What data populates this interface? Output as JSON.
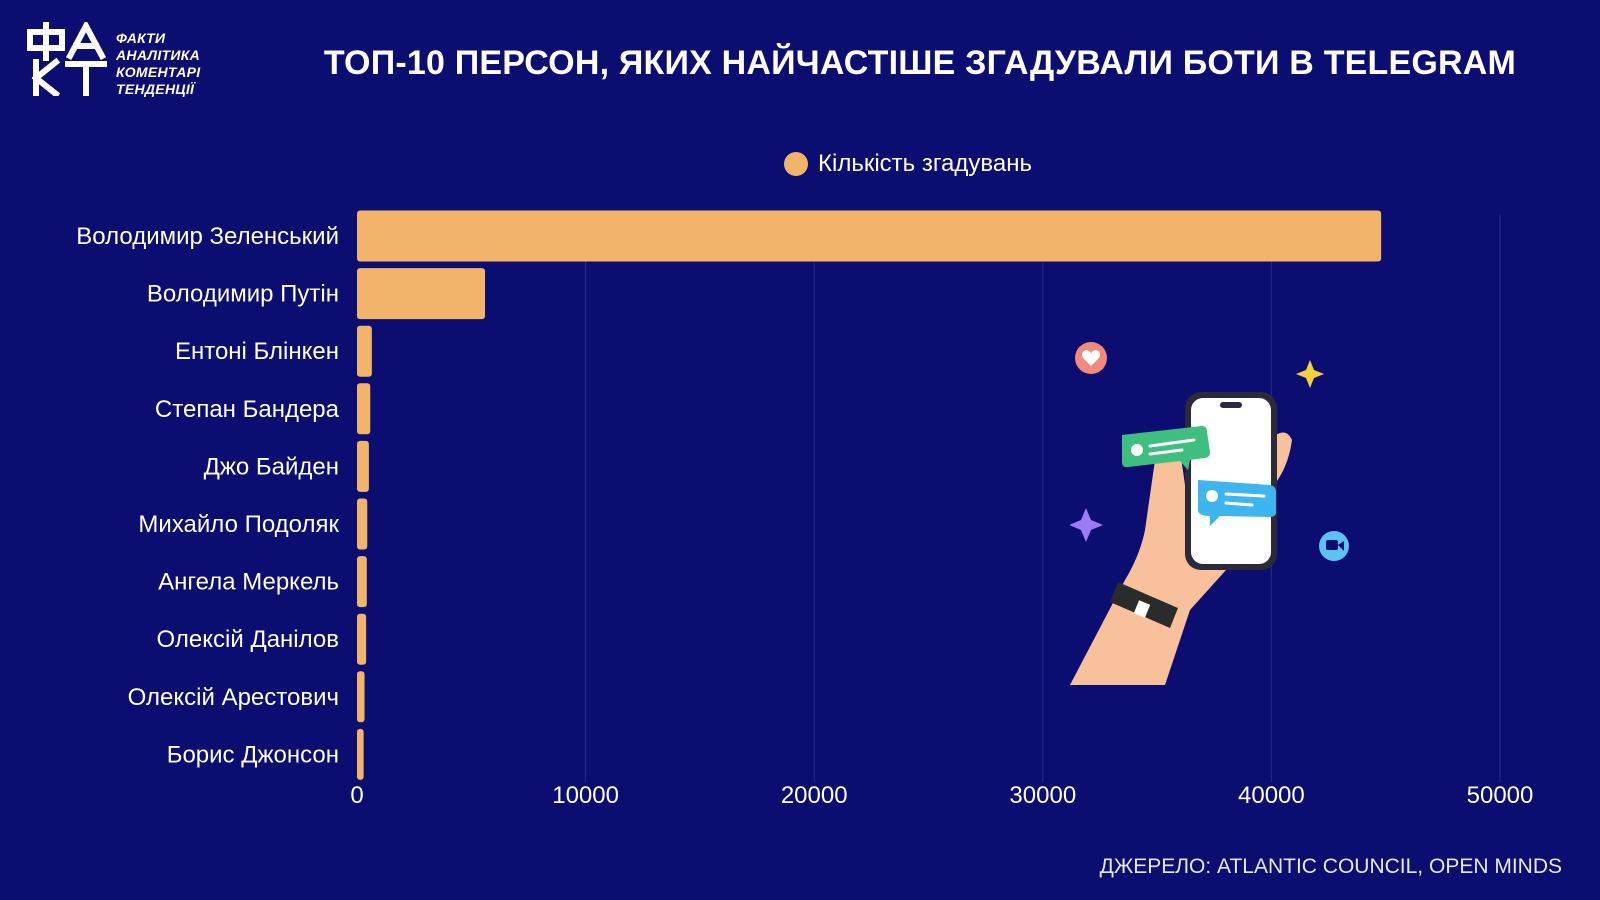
{
  "brand": {
    "logo_lines": [
      "ФАКТИ",
      "АНАЛІТИКА",
      "КОМЕНТАРІ",
      "ТЕНДЕНЦІЇ"
    ]
  },
  "title": "ТОП-10 ПЕРСОН, ЯКИХ НАЙЧАСТІШЕ ЗГАДУВАЛИ БОТИ В TELEGRAM",
  "source": "ДЖЕРЕЛО: ATLANTIC COUNCIL, OPEN MINDS",
  "colors": {
    "background": "#0b0d70",
    "bar": "#f2b46b",
    "grid": "#2a2d8c"
  },
  "chart_data": {
    "type": "bar",
    "orientation": "horizontal",
    "categories": [
      "Володимир Зеленський",
      "Володимир Путін",
      "Ентоні Блінкен",
      "Степан Бандера",
      "Джо Байден",
      "Михайло Подоляк",
      "Ангела Меркель",
      "Олексій Данілов",
      "Олексій Арестович",
      "Борис Джонсон"
    ],
    "series": [
      {
        "name": "Кількість згадувань",
        "values": [
          44800,
          5600,
          650,
          580,
          520,
          450,
          430,
          400,
          330,
          290
        ]
      }
    ],
    "xlim": [
      0,
      50000
    ],
    "xticks": [
      0,
      10000,
      20000,
      30000,
      40000,
      50000
    ],
    "grid": true,
    "legend": "top-center"
  }
}
